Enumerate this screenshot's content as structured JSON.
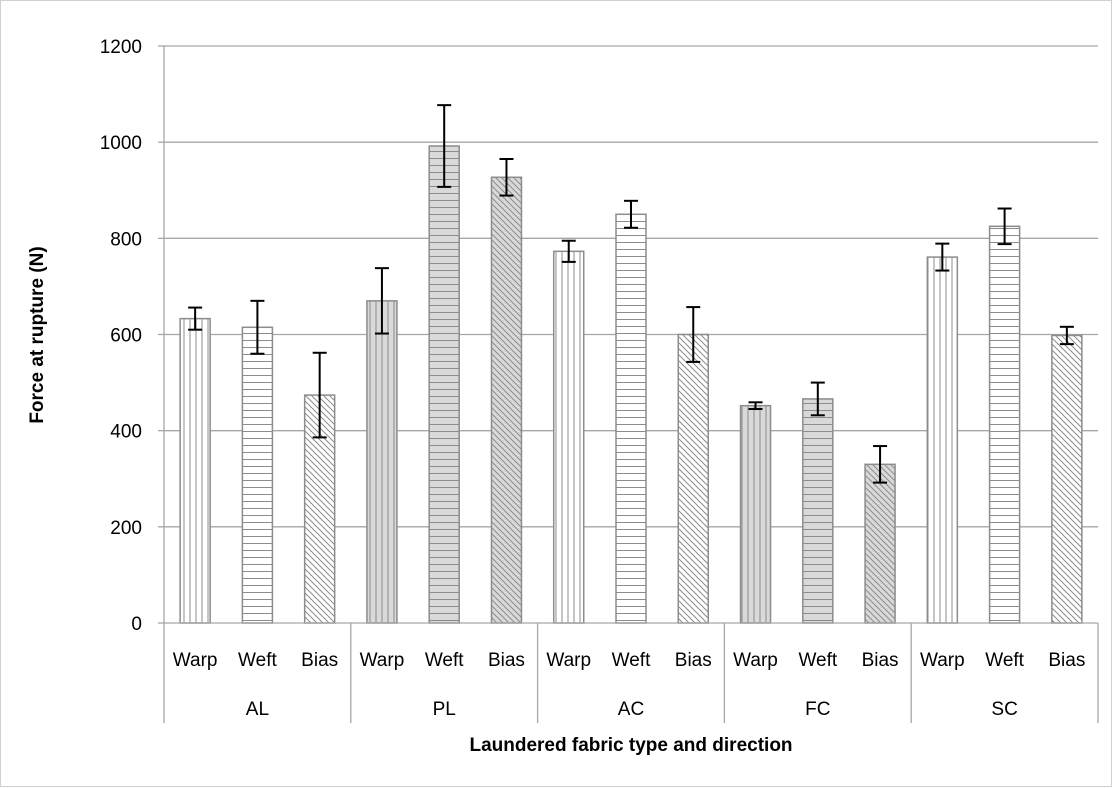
{
  "chart_data": {
    "type": "bar",
    "title": "",
    "xlabel": "Laundered fabric type and direction",
    "ylabel": "Force at rupture (N)",
    "ylim": [
      0,
      1200
    ],
    "yticks": [
      0,
      200,
      400,
      600,
      800,
      1000,
      1200
    ],
    "grid": true,
    "legend": "none",
    "groups": [
      "AL",
      "PL",
      "AC",
      "FC",
      "SC"
    ],
    "directions": [
      "Warp",
      "Weft",
      "Bias"
    ],
    "patterns": {
      "Warp": "vertical-lines",
      "Weft": "horizontal-lines",
      "Bias": "diagonal-lines"
    },
    "bars": [
      {
        "group": "AL",
        "direction": "Warp",
        "value": 633,
        "error": 23,
        "shaded": false
      },
      {
        "group": "AL",
        "direction": "Weft",
        "value": 615,
        "error": 55,
        "shaded": false
      },
      {
        "group": "AL",
        "direction": "Bias",
        "value": 474,
        "error": 88,
        "shaded": false
      },
      {
        "group": "PL",
        "direction": "Warp",
        "value": 670,
        "error": 68,
        "shaded": true
      },
      {
        "group": "PL",
        "direction": "Weft",
        "value": 992,
        "error": 85,
        "shaded": true
      },
      {
        "group": "PL",
        "direction": "Bias",
        "value": 927,
        "error": 38,
        "shaded": true
      },
      {
        "group": "AC",
        "direction": "Warp",
        "value": 773,
        "error": 22,
        "shaded": false
      },
      {
        "group": "AC",
        "direction": "Weft",
        "value": 850,
        "error": 28,
        "shaded": false
      },
      {
        "group": "AC",
        "direction": "Bias",
        "value": 600,
        "error": 57,
        "shaded": false
      },
      {
        "group": "FC",
        "direction": "Warp",
        "value": 452,
        "error": 7,
        "shaded": true
      },
      {
        "group": "FC",
        "direction": "Weft",
        "value": 466,
        "error": 34,
        "shaded": true
      },
      {
        "group": "FC",
        "direction": "Bias",
        "value": 330,
        "error": 38,
        "shaded": true
      },
      {
        "group": "SC",
        "direction": "Warp",
        "value": 761,
        "error": 28,
        "shaded": false
      },
      {
        "group": "SC",
        "direction": "Weft",
        "value": 825,
        "error": 37,
        "shaded": false
      },
      {
        "group": "SC",
        "direction": "Bias",
        "value": 598,
        "error": 18,
        "shaded": false
      }
    ]
  },
  "colors": {
    "bar_stroke": "#8c8c8c",
    "bar_fill_light": "#ffffff",
    "bar_fill_shaded": "#d9d9d9",
    "gridline": "#a6a6a6",
    "error_bar": "#000000",
    "text": "#000000"
  }
}
